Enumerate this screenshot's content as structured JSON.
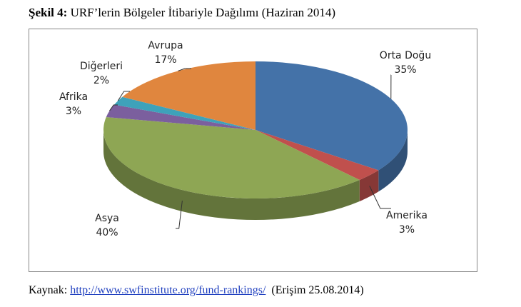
{
  "caption": {
    "label": "Şekil 4:",
    "text": "URF’lerin Bölgeler İtibariyle Dağılımı (Haziran 2014)"
  },
  "chart_data": {
    "type": "pie",
    "categories": [
      "Orta Doğu",
      "Amerika",
      "Asya",
      "Afrika",
      "Diğerleri",
      "Avrupa"
    ],
    "values": [
      35,
      3,
      40,
      3,
      2,
      17
    ],
    "value_labels": [
      "35%",
      "3%",
      "40%",
      "3%",
      "2%",
      "17%"
    ],
    "colors": [
      "#4472a8",
      "#c0504d",
      "#8ea654",
      "#7b5f9e",
      "#3ea2ba",
      "#e0863e"
    ]
  },
  "source": {
    "label": "Kaynak:",
    "url": "http://www.swfinstitute.org/fund-rankings/",
    "access": "(Erişim 25.08.2014)"
  }
}
